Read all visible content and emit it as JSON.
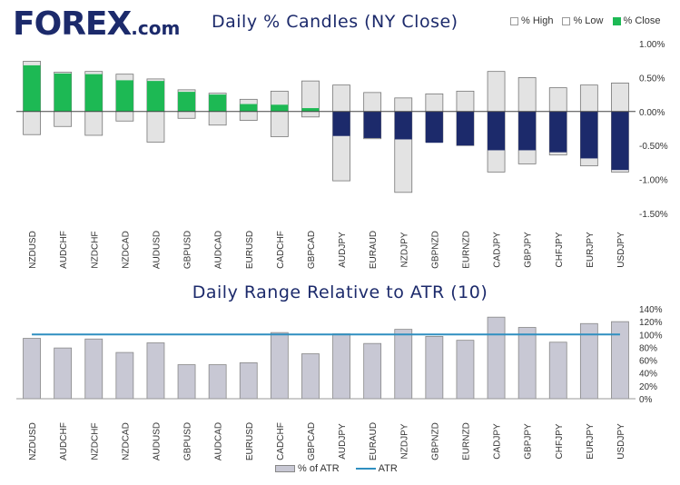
{
  "brand": {
    "logo_text": "FOREX",
    "logo_suffix": ".com"
  },
  "colors": {
    "navy": "#1c2a6b",
    "green": "#1db954",
    "range_fill": "#e3e3e3",
    "atr_bar_fill": "#c8c8d4",
    "atr_line": "#2f8fc0"
  },
  "legend_top": [
    {
      "label": "% High",
      "color": "#ffffff"
    },
    {
      "label": "% Low",
      "color": "#ffffff"
    },
    {
      "label": "% Close",
      "color": "#1db954"
    }
  ],
  "legend_bottom": [
    {
      "label": "% of ATR",
      "type": "bar",
      "color": "#c8c8d4"
    },
    {
      "label": "ATR",
      "type": "line",
      "color": "#2f8fc0"
    }
  ],
  "chart_data": [
    {
      "type": "candlestick",
      "title": "Daily % Candles (NY Close)",
      "xlabel": "",
      "ylabel": "",
      "ylim": [
        -1.5,
        1.0
      ],
      "yticks": [
        "1.00%",
        "0.50%",
        "0.00%",
        "-0.50%",
        "-1.00%",
        "-1.50%"
      ],
      "yticks_values": [
        1.0,
        0.5,
        0.0,
        -0.5,
        -1.0,
        -1.5
      ],
      "categories": [
        "NZDUSD",
        "AUDCHF",
        "NZDCHF",
        "NZDCAD",
        "AUDUSD",
        "GBPUSD",
        "AUDCAD",
        "EURUSD",
        "CADCHF",
        "GBPCAD",
        "AUDJPY",
        "EURAUD",
        "NZDJPY",
        "GBPNZD",
        "EURNZD",
        "CADJPY",
        "GBPJPY",
        "CHFJPY",
        "EURJPY",
        "USDJPY"
      ],
      "series": [
        {
          "name": "% High",
          "values": [
            0.74,
            0.58,
            0.59,
            0.55,
            0.48,
            0.32,
            0.27,
            0.18,
            0.3,
            0.45,
            0.39,
            0.28,
            0.2,
            0.26,
            0.3,
            0.59,
            0.5,
            0.35,
            0.39,
            0.42
          ]
        },
        {
          "name": "% Low",
          "values": [
            -0.34,
            -0.22,
            -0.35,
            -0.14,
            -0.45,
            -0.1,
            -0.2,
            -0.13,
            -0.37,
            -0.08,
            -1.02,
            -0.4,
            -1.19,
            -0.45,
            -0.5,
            -0.89,
            -0.77,
            -0.64,
            -0.8,
            -0.89
          ]
        },
        {
          "name": "% Close",
          "values": [
            0.68,
            0.56,
            0.55,
            0.46,
            0.45,
            0.29,
            0.25,
            0.11,
            0.1,
            0.05,
            -0.36,
            -0.39,
            -0.41,
            -0.46,
            -0.5,
            -0.57,
            -0.57,
            -0.6,
            -0.69,
            -0.86
          ]
        }
      ]
    },
    {
      "type": "bar",
      "title": "Daily Range Relative to ATR (10)",
      "xlabel": "",
      "ylabel": "",
      "ylim": [
        0,
        140
      ],
      "yticks": [
        "140%",
        "120%",
        "100%",
        "80%",
        "60%",
        "40%",
        "20%",
        "0%"
      ],
      "yticks_values": [
        140,
        120,
        100,
        80,
        60,
        40,
        20,
        0
      ],
      "categories": [
        "NZDUSD",
        "AUDCHF",
        "NZDCHF",
        "NZDCAD",
        "AUDUSD",
        "GBPUSD",
        "AUDCAD",
        "EURUSD",
        "CADCHF",
        "GBPCAD",
        "AUDJPY",
        "EURAUD",
        "NZDJPY",
        "GBPNZD",
        "EURNZD",
        "CADJPY",
        "GBPJPY",
        "CHFJPY",
        "EURJPY",
        "USDJPY"
      ],
      "series": [
        {
          "name": "% of ATR",
          "values": [
            94,
            79,
            93,
            72,
            87,
            53,
            53,
            56,
            103,
            70,
            101,
            86,
            108,
            97,
            91,
            127,
            111,
            88,
            117,
            120
          ]
        },
        {
          "name": "ATR",
          "values": [
            100,
            100,
            100,
            100,
            100,
            100,
            100,
            100,
            100,
            100,
            100,
            100,
            100,
            100,
            100,
            100,
            100,
            100,
            100,
            100
          ]
        }
      ]
    }
  ]
}
